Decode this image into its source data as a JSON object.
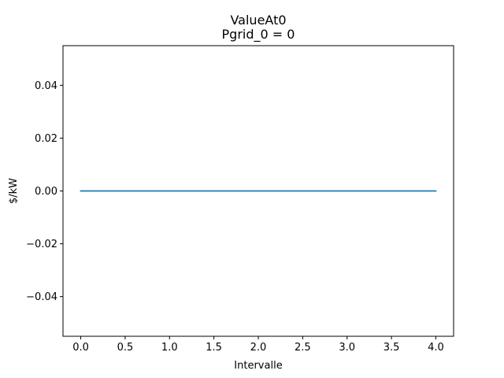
{
  "chart_data": {
    "type": "line",
    "title": "ValueAt0",
    "subtitle": "Pgrid_0 = 0",
    "xlabel": "Intervalle",
    "ylabel": "$/kW",
    "xlim": [
      -0.2,
      4.2
    ],
    "ylim": [
      -0.055,
      0.055
    ],
    "x_ticks": [
      0.0,
      0.5,
      1.0,
      1.5,
      2.0,
      2.5,
      3.0,
      3.5,
      4.0
    ],
    "x_tick_labels": [
      "0.0",
      "0.5",
      "1.0",
      "1.5",
      "2.0",
      "2.5",
      "3.0",
      "3.5",
      "4.0"
    ],
    "y_ticks": [
      -0.04,
      -0.02,
      0.0,
      0.02,
      0.04
    ],
    "y_tick_labels": [
      "−0.04",
      "−0.02",
      "0.00",
      "0.02",
      "0.04"
    ],
    "grid": false,
    "series": [
      {
        "color": "#1f77b4",
        "x": [
          0,
          1,
          2,
          3,
          4
        ],
        "y": [
          0,
          0,
          0,
          0,
          0
        ]
      }
    ]
  }
}
